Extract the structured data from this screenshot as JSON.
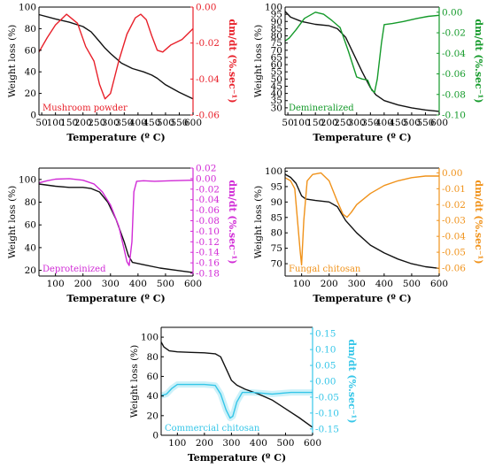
{
  "chart_data": [
    {
      "type": "line",
      "annotation": "Mushroom powder",
      "accent": "#e8202a",
      "xlabel": "Temperature (º C)",
      "ylabel_left": "Weight loss (%)",
      "ylabel_right": "dm/dt (%.sec⁻¹)",
      "xlim": [
        40,
        600
      ],
      "ylim_left": [
        0,
        100
      ],
      "ylim_right": [
        -0.06,
        0.0
      ],
      "xticks": [
        50,
        100,
        150,
        200,
        250,
        300,
        350,
        400,
        450,
        500,
        550,
        600
      ],
      "yticks_left": [
        0,
        20,
        40,
        60,
        80,
        100
      ],
      "yticks_right": [
        -0.06,
        -0.04,
        -0.02,
        0.0
      ],
      "ytick_labels_right": [
        "-0.06",
        "-0.04",
        "-0.02",
        "0.00"
      ],
      "series": [
        {
          "axis": "left",
          "color": "#111111",
          "x": [
            40,
            100,
            150,
            200,
            230,
            260,
            280,
            300,
            340,
            380,
            420,
            450,
            470,
            500,
            550,
            600
          ],
          "values": [
            93,
            89,
            86,
            82,
            77,
            68,
            62,
            57,
            48,
            43,
            40,
            37,
            34,
            28,
            21,
            15
          ]
        },
        {
          "axis": "right",
          "color": "#e8202a",
          "x": [
            40,
            70,
            100,
            140,
            180,
            210,
            240,
            260,
            280,
            300,
            330,
            360,
            390,
            410,
            430,
            450,
            470,
            490,
            520,
            560,
            600
          ],
          "values": [
            -0.025,
            -0.017,
            -0.01,
            -0.004,
            -0.009,
            -0.022,
            -0.03,
            -0.043,
            -0.051,
            -0.048,
            -0.03,
            -0.015,
            -0.006,
            -0.004,
            -0.007,
            -0.016,
            -0.024,
            -0.025,
            -0.021,
            -0.018,
            -0.012
          ]
        }
      ]
    },
    {
      "type": "line",
      "annotation": "Demineralized",
      "accent": "#149a2a",
      "xlabel": "Temperature (º C)",
      "ylabel_left": "Weight loss (%)",
      "ylabel_right": "dm/dt (%.sec⁻¹)",
      "xlim": [
        40,
        600
      ],
      "ylim_left": [
        25,
        100
      ],
      "ylim_right": [
        -0.1,
        0.005
      ],
      "xticks": [
        50,
        100,
        150,
        200,
        250,
        300,
        350,
        400,
        450,
        500,
        550,
        600
      ],
      "yticks_left": [
        30,
        35,
        40,
        45,
        50,
        55,
        60,
        65,
        70,
        75,
        80,
        85,
        90,
        95,
        100
      ],
      "yticks_right": [
        -0.1,
        -0.08,
        -0.06,
        -0.04,
        -0.02,
        0.0
      ],
      "ytick_labels_right": [
        "-0.10",
        "-0.08",
        "-0.06",
        "-0.04",
        "-0.02",
        "0.00"
      ],
      "series": [
        {
          "axis": "left",
          "color": "#111111",
          "x": [
            40,
            60,
            100,
            150,
            200,
            230,
            260,
            290,
            320,
            350,
            370,
            400,
            450,
            500,
            550,
            600
          ],
          "values": [
            97,
            93,
            90,
            88,
            87,
            85,
            79,
            67,
            55,
            44,
            39,
            35,
            32,
            30,
            28.5,
            27.5
          ]
        },
        {
          "axis": "right",
          "color": "#149a2a",
          "x": [
            40,
            55,
            80,
            110,
            150,
            180,
            210,
            240,
            270,
            300,
            320,
            340,
            355,
            365,
            375,
            390,
            400,
            430,
            470,
            520,
            560,
            600
          ],
          "values": [
            -0.028,
            -0.025,
            -0.017,
            -0.006,
            0.0,
            -0.002,
            -0.008,
            -0.015,
            -0.038,
            -0.063,
            -0.065,
            -0.066,
            -0.076,
            -0.078,
            -0.065,
            -0.03,
            -0.012,
            -0.011,
            -0.009,
            -0.006,
            -0.004,
            -0.003
          ]
        }
      ]
    },
    {
      "type": "line",
      "annotation": "Deproteinized",
      "accent": "#d12bd6",
      "xlabel": "Temperature (º C)",
      "ylabel_left": "Weight loss (%)",
      "ylabel_right": "dm/dt (%.sec⁻¹)",
      "xlim": [
        40,
        600
      ],
      "ylim_left": [
        15,
        110
      ],
      "ylim_right": [
        -0.185,
        0.02
      ],
      "xticks": [
        100,
        200,
        300,
        400,
        500,
        600
      ],
      "yticks_left": [
        20,
        40,
        60,
        80,
        100
      ],
      "yticks_right": [
        -0.18,
        -0.16,
        -0.14,
        -0.12,
        -0.1,
        -0.08,
        -0.06,
        -0.04,
        -0.02,
        0.0,
        0.02
      ],
      "ytick_labels_right": [
        "-0.18",
        "-0.16",
        "-0.14",
        "-0.12",
        "-0.10",
        "-0.08",
        "-0.06",
        "-0.04",
        "-0.02",
        "0.00",
        "0.02"
      ],
      "series": [
        {
          "axis": "left",
          "color": "#111111",
          "x": [
            40,
            100,
            150,
            200,
            230,
            260,
            290,
            320,
            350,
            365,
            380,
            420,
            480,
            540,
            600
          ],
          "values": [
            96,
            94,
            93,
            93,
            92,
            89,
            80,
            65,
            45,
            33,
            27,
            25,
            22,
            20,
            18
          ]
        },
        {
          "axis": "right",
          "color": "#d12bd6",
          "x": [
            40,
            70,
            100,
            150,
            200,
            240,
            270,
            300,
            330,
            350,
            360,
            368,
            378,
            385,
            395,
            420,
            460,
            520,
            600
          ],
          "values": [
            -0.008,
            -0.004,
            -0.001,
            0.0,
            -0.003,
            -0.01,
            -0.025,
            -0.05,
            -0.09,
            -0.135,
            -0.158,
            -0.165,
            -0.12,
            -0.025,
            -0.005,
            -0.004,
            -0.005,
            -0.004,
            -0.003
          ]
        }
      ]
    },
    {
      "type": "line",
      "annotation": "Fungal chitosan",
      "accent": "#f0921a",
      "xlabel": "Temperature (º C)",
      "ylabel_left": "Weight loss (%)",
      "ylabel_right": "dm/dt (%.sec⁻¹)",
      "xlim": [
        40,
        600
      ],
      "ylim_left": [
        66,
        101
      ],
      "ylim_right": [
        -0.065,
        0.003
      ],
      "xticks": [
        100,
        200,
        300,
        400,
        500,
        600
      ],
      "yticks_left": [
        70,
        75,
        80,
        85,
        90,
        95,
        100
      ],
      "yticks_right": [
        -0.06,
        -0.05,
        -0.04,
        -0.03,
        -0.02,
        -0.01,
        0.0
      ],
      "ytick_labels_right": [
        "-0.06",
        "-0.05",
        "-0.04",
        "-0.03",
        "-0.02",
        "-0.01",
        "0.00"
      ],
      "series": [
        {
          "axis": "left",
          "color": "#111111",
          "x": [
            40,
            60,
            80,
            100,
            115,
            150,
            200,
            230,
            260,
            300,
            350,
            400,
            450,
            500,
            550,
            600
          ],
          "values": [
            99,
            98,
            96,
            92,
            91,
            90.5,
            90,
            88.5,
            84,
            80,
            76,
            73.5,
            71.5,
            70,
            69,
            68.5
          ]
        },
        {
          "axis": "right",
          "color": "#f0921a",
          "x": [
            40,
            60,
            75,
            85,
            95,
            100,
            108,
            120,
            140,
            170,
            200,
            230,
            250,
            265,
            280,
            300,
            350,
            400,
            450,
            500,
            550,
            600
          ],
          "values": [
            -0.003,
            -0.005,
            -0.01,
            -0.03,
            -0.05,
            -0.058,
            -0.03,
            -0.005,
            -0.001,
            0.0,
            -0.005,
            -0.018,
            -0.026,
            -0.028,
            -0.025,
            -0.02,
            -0.013,
            -0.008,
            -0.005,
            -0.003,
            -0.002,
            -0.002
          ]
        }
      ]
    },
    {
      "type": "line",
      "annotation": "Commercial chitosan",
      "accent": "#35c6e8",
      "xlabel": "Temperature (º C)",
      "ylabel_left": "Weight loss (%)",
      "ylabel_right": "dm/dt (%.sec⁻¹)",
      "xlim": [
        40,
        600
      ],
      "ylim_left": [
        0,
        110
      ],
      "ylim_right": [
        -0.17,
        0.17
      ],
      "xticks": [
        100,
        200,
        300,
        400,
        500,
        600
      ],
      "yticks_left": [
        0,
        20,
        40,
        60,
        80,
        100
      ],
      "yticks_right": [
        -0.15,
        -0.1,
        -0.05,
        0.0,
        0.05,
        0.1,
        0.15
      ],
      "ytick_labels_right": [
        "-0.15",
        "-0.10",
        "-0.05",
        "0.00",
        "0.05",
        "0.10",
        "0.15"
      ],
      "series": [
        {
          "axis": "left",
          "color": "#111111",
          "x": [
            40,
            50,
            70,
            100,
            150,
            200,
            240,
            260,
            280,
            300,
            320,
            350,
            400,
            450,
            500,
            550,
            600
          ],
          "values": [
            95,
            90,
            86,
            85,
            84.5,
            84,
            83,
            80,
            68,
            56,
            51,
            47,
            42,
            36,
            27,
            18,
            8
          ]
        },
        {
          "axis": "right",
          "color": "#35c6e8",
          "x": [
            40,
            60,
            80,
            100,
            150,
            200,
            240,
            260,
            280,
            295,
            305,
            320,
            340,
            380,
            450,
            520,
            600
          ],
          "values": [
            -0.045,
            -0.04,
            -0.022,
            -0.01,
            -0.01,
            -0.01,
            -0.013,
            -0.04,
            -0.09,
            -0.116,
            -0.11,
            -0.065,
            -0.035,
            -0.035,
            -0.04,
            -0.035,
            -0.035
          ]
        }
      ]
    }
  ]
}
